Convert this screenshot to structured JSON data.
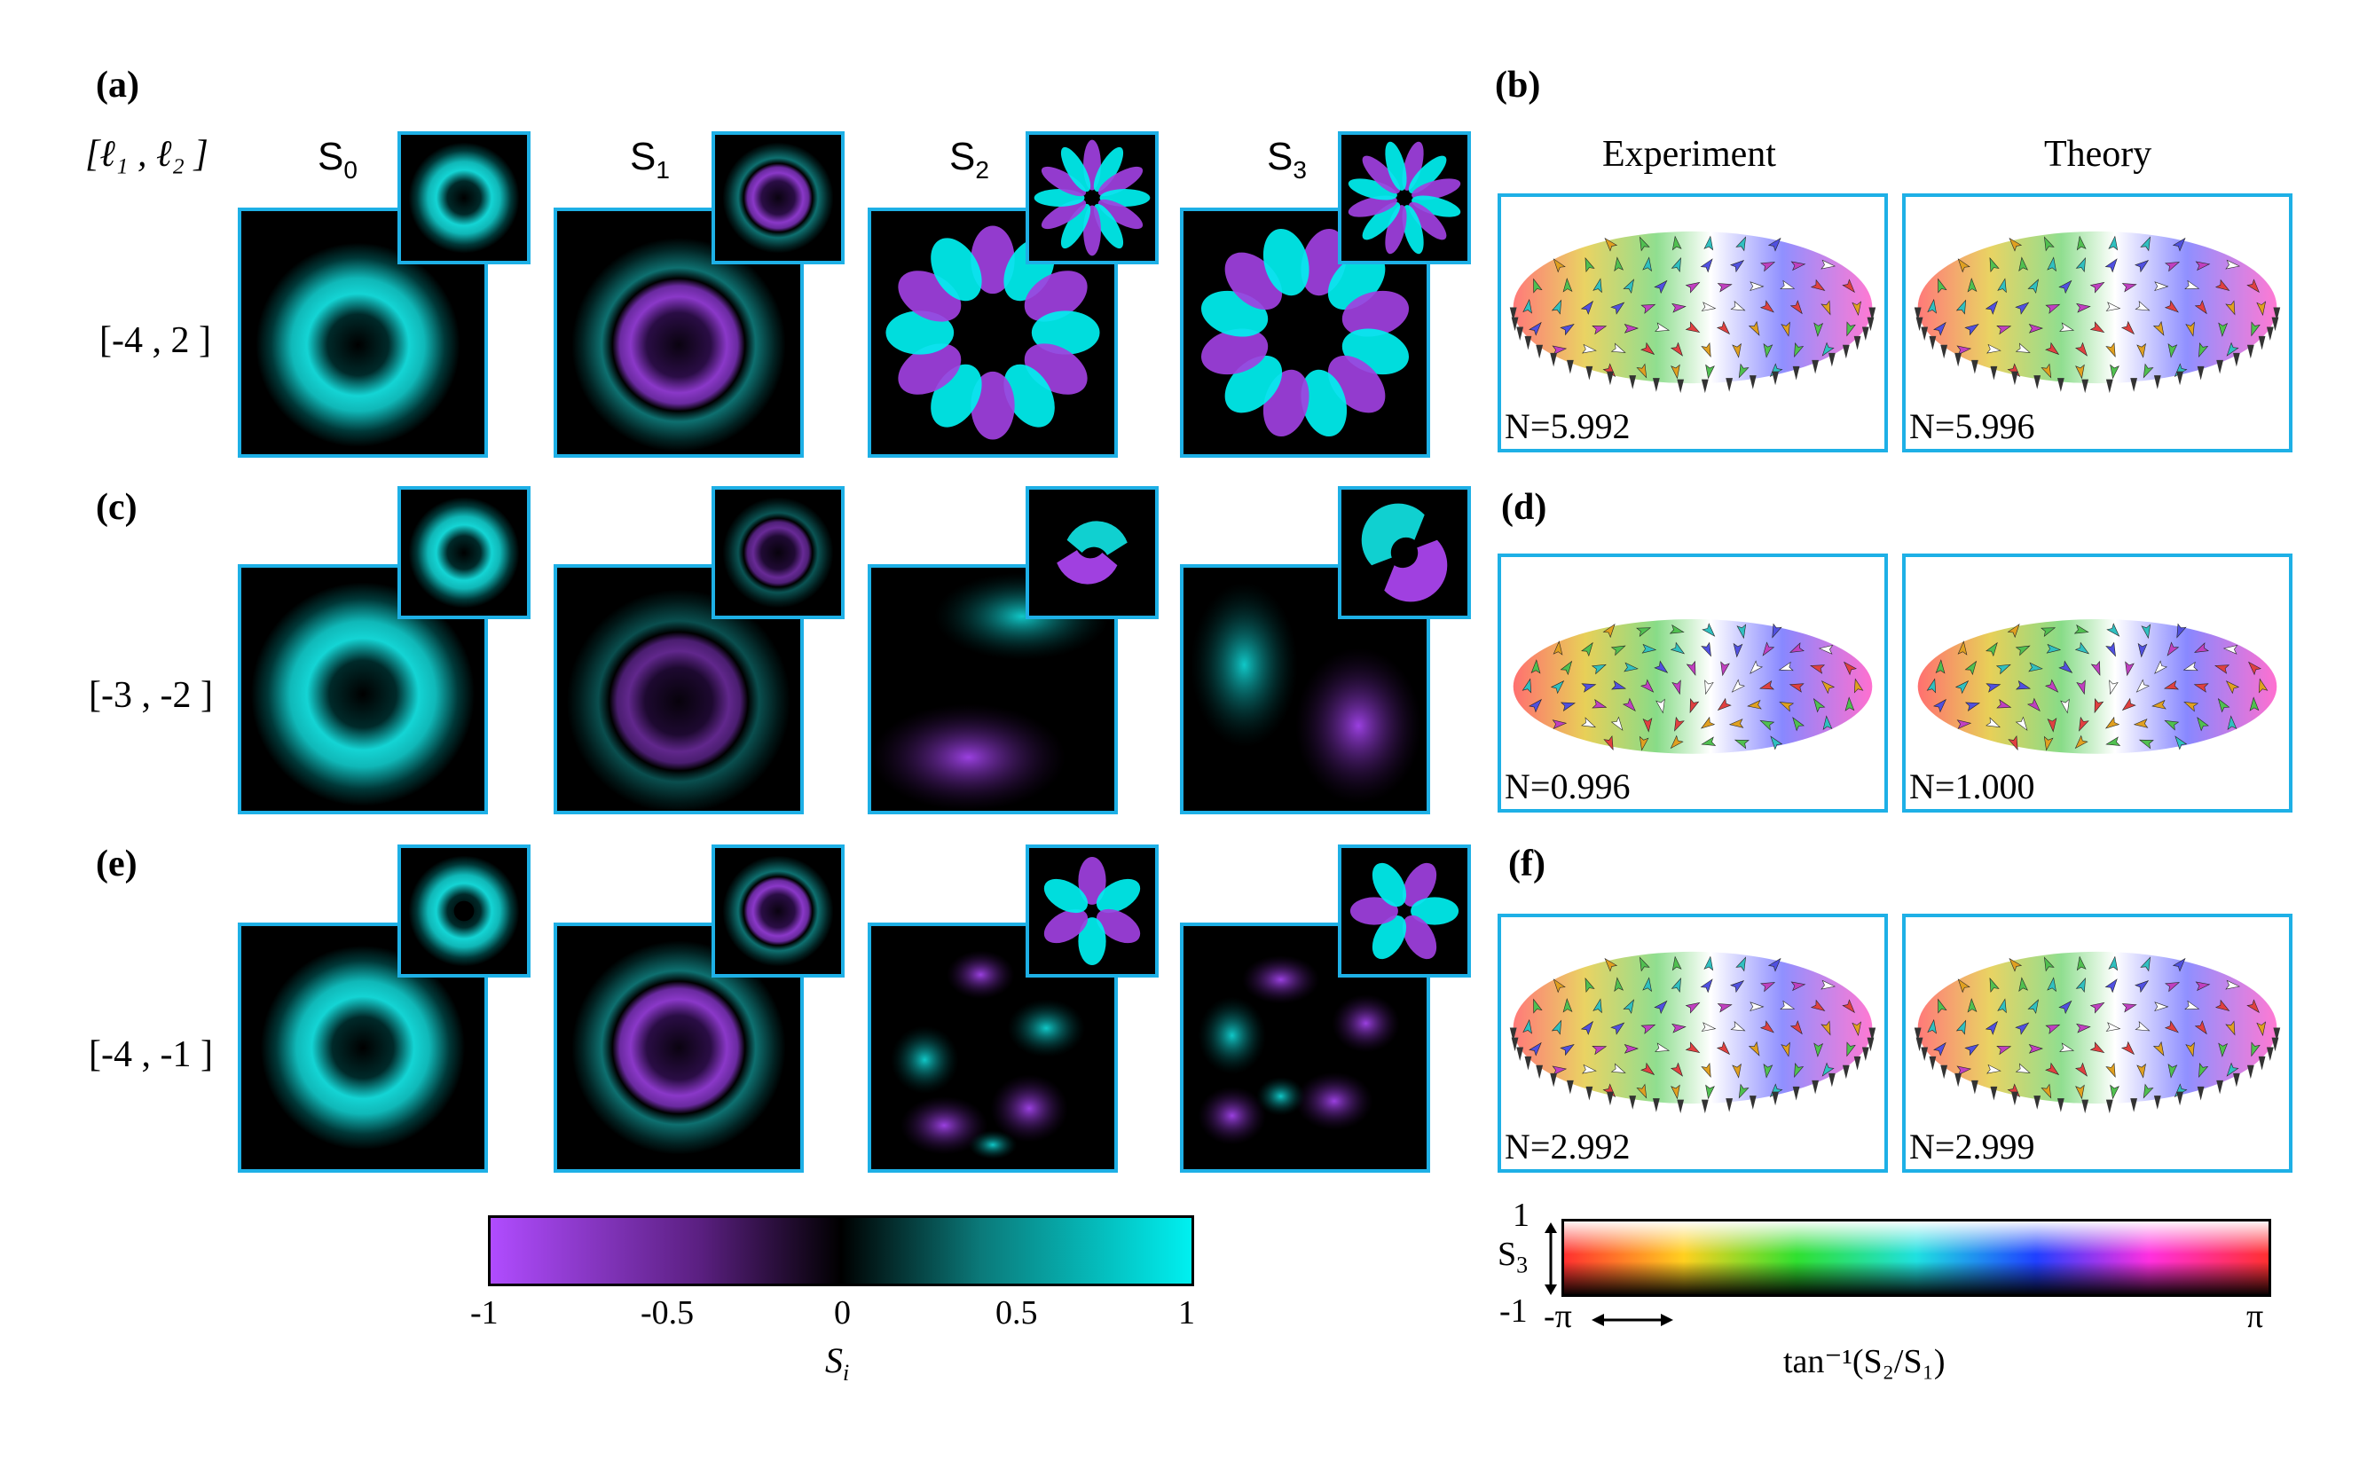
{
  "panel_labels": {
    "a": "(a)",
    "b": "(b)",
    "c": "(c)",
    "d": "(d)",
    "e": "(e)",
    "f": "(f)"
  },
  "row_header": "[ℓ₁ , ℓ₂ ]",
  "rows": [
    {
      "label": "[-4 , 2 ]"
    },
    {
      "label": "[-3 , -2 ]"
    },
    {
      "label": "[-4 , -1 ]"
    }
  ],
  "columns": [
    {
      "base": "S",
      "sub": "0"
    },
    {
      "base": "S",
      "sub": "1"
    },
    {
      "base": "S",
      "sub": "2"
    },
    {
      "base": "S",
      "sub": "3"
    }
  ],
  "right_headers": {
    "experiment": "Experiment",
    "theory": "Theory"
  },
  "n_values": [
    {
      "experiment": "N=5.992",
      "theory": "N=5.996"
    },
    {
      "experiment": "N=0.996",
      "theory": "N=1.000"
    },
    {
      "experiment": "N=2.992",
      "theory": "N=2.999"
    }
  ],
  "colorbar_si": {
    "ticks": [
      "-1",
      "-0.5",
      "0",
      "0.5",
      "1"
    ],
    "label": "S",
    "label_sub": "i",
    "colors": {
      "neg": "#b04cff",
      "zero": "#000000",
      "pos": "#00f0f0"
    }
  },
  "colorbar_hsv": {
    "y_top": "1",
    "y_bottom": "-1",
    "y_label": "S",
    "y_label_sub": "3",
    "x_left": "-π",
    "x_right": "π",
    "x_label": "tan⁻¹(S₂/S₁)"
  },
  "colors": {
    "border": "#1eb0e6",
    "cyan": "#00f0f0",
    "purple": "#a040e0"
  }
}
